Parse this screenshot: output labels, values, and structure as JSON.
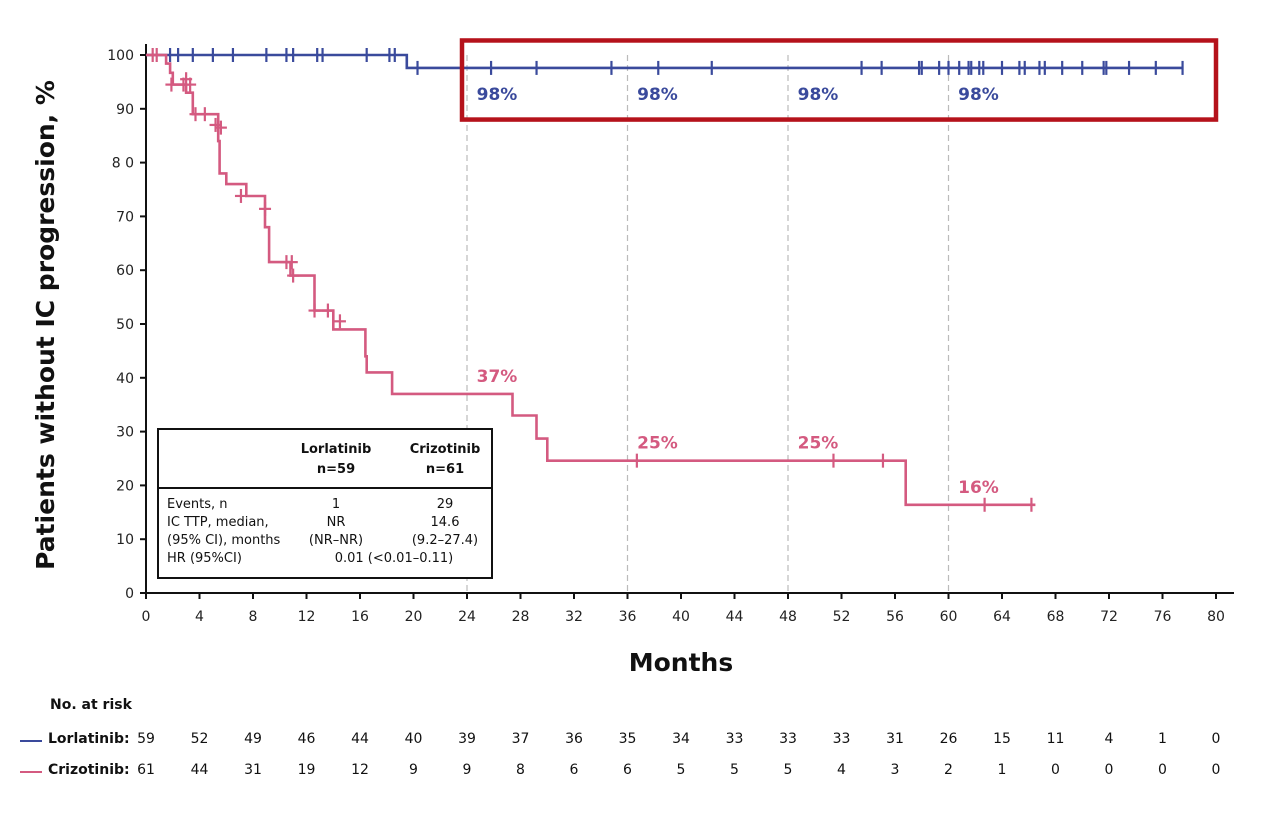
{
  "chart_data": {
    "type": "line",
    "title": "",
    "ylabel": "Patients without IC progression, %",
    "xlabel": "Months",
    "xlim": [
      0,
      80
    ],
    "ylim": [
      0,
      100
    ],
    "x_ticks": [
      "0",
      "4",
      "8",
      "12",
      "16",
      "20",
      "24",
      "28",
      "32",
      "36",
      "40",
      "44",
      "48",
      "52",
      "56",
      "60",
      "64",
      "68",
      "72",
      "76",
      "80"
    ],
    "y_ticks": [
      "0",
      "10",
      "20",
      "30",
      "40",
      "50",
      "60",
      "70",
      "8 0",
      "90",
      "100"
    ],
    "reference_lines_x": [
      24,
      36,
      48,
      60
    ],
    "series": [
      {
        "name": "Lorlatinib",
        "color": "#3a4a9c",
        "steps": [
          [
            0,
            100
          ],
          [
            19.5,
            100
          ],
          [
            19.5,
            97.6
          ],
          [
            77.5,
            97.6
          ]
        ],
        "censors": [
          [
            1.8,
            100
          ],
          [
            2.4,
            100
          ],
          [
            3.5,
            100
          ],
          [
            5,
            100
          ],
          [
            6.5,
            100
          ],
          [
            9,
            100
          ],
          [
            10.5,
            100
          ],
          [
            11,
            100
          ],
          [
            12.8,
            100
          ],
          [
            13.2,
            100
          ],
          [
            16.5,
            100
          ],
          [
            18.2,
            100
          ],
          [
            18.6,
            100
          ],
          [
            20.3,
            97.6
          ],
          [
            25.8,
            97.6
          ],
          [
            29.2,
            97.6
          ],
          [
            34.8,
            97.6
          ],
          [
            38.3,
            97.6
          ],
          [
            42.3,
            97.6
          ],
          [
            53.5,
            97.6
          ],
          [
            55,
            97.6
          ],
          [
            57.8,
            97.6
          ],
          [
            58,
            97.6
          ],
          [
            59.3,
            97.6
          ],
          [
            60,
            97.6
          ],
          [
            60.8,
            97.6
          ],
          [
            61.5,
            97.6
          ],
          [
            61.7,
            97.6
          ],
          [
            62.3,
            97.6
          ],
          [
            62.6,
            97.6
          ],
          [
            64,
            97.6
          ],
          [
            65.3,
            97.6
          ],
          [
            65.7,
            97.6
          ],
          [
            66.8,
            97.6
          ],
          [
            67.2,
            97.6
          ],
          [
            68.5,
            97.6
          ],
          [
            70,
            97.6
          ],
          [
            71.6,
            97.6
          ],
          [
            71.8,
            97.6
          ],
          [
            73.5,
            97.6
          ],
          [
            75.5,
            97.6
          ],
          [
            77.5,
            97.6
          ]
        ],
        "annotations": [
          {
            "x": 24,
            "y": 97.6,
            "label": "98%"
          },
          {
            "x": 36,
            "y": 97.6,
            "label": "98%"
          },
          {
            "x": 48,
            "y": 97.6,
            "label": "98%"
          },
          {
            "x": 60,
            "y": 97.6,
            "label": "98%"
          }
        ]
      },
      {
        "name": "Crizotinib",
        "color": "#d45a80",
        "steps": [
          [
            0,
            100
          ],
          [
            1.5,
            100
          ],
          [
            1.5,
            98.4
          ],
          [
            1.8,
            98.4
          ],
          [
            1.8,
            96.7
          ],
          [
            2,
            96.7
          ],
          [
            2,
            94.5
          ],
          [
            3,
            94.5
          ],
          [
            3,
            93
          ],
          [
            3.5,
            93
          ],
          [
            3.5,
            89
          ],
          [
            5.4,
            89
          ],
          [
            5.4,
            84
          ],
          [
            5.5,
            84
          ],
          [
            5.5,
            78
          ],
          [
            6,
            78
          ],
          [
            6,
            76
          ],
          [
            7.5,
            76
          ],
          [
            7.5,
            73.8
          ],
          [
            8.9,
            73.8
          ],
          [
            8.9,
            68
          ],
          [
            9.2,
            68
          ],
          [
            9.2,
            61.5
          ],
          [
            10.8,
            61.5
          ],
          [
            10.8,
            59
          ],
          [
            12.6,
            59
          ],
          [
            12.6,
            52.5
          ],
          [
            14,
            52.5
          ],
          [
            14,
            49
          ],
          [
            16.4,
            49
          ],
          [
            16.4,
            44
          ],
          [
            16.5,
            44
          ],
          [
            16.5,
            41
          ],
          [
            18.4,
            41
          ],
          [
            18.4,
            37
          ],
          [
            27.4,
            37
          ],
          [
            27.4,
            33
          ],
          [
            29.2,
            33
          ],
          [
            29.2,
            28.7
          ],
          [
            30,
            28.7
          ],
          [
            30,
            24.6
          ],
          [
            56.8,
            24.6
          ],
          [
            56.8,
            16.4
          ],
          [
            66.5,
            16.4
          ]
        ],
        "censors": [
          [
            0.5,
            100
          ],
          [
            0.8,
            100
          ],
          [
            1.9,
            94.5
          ],
          [
            2.8,
            94.5
          ],
          [
            3,
            95.5
          ],
          [
            3.3,
            94.5
          ],
          [
            3.7,
            89
          ],
          [
            4.4,
            89
          ],
          [
            5.2,
            87
          ],
          [
            5.6,
            86.5
          ],
          [
            7.1,
            73.8
          ],
          [
            8.9,
            71.4
          ],
          [
            10.5,
            61.5
          ],
          [
            10.9,
            61.5
          ],
          [
            11,
            59
          ],
          [
            12.6,
            52.5
          ],
          [
            13.6,
            52.5
          ],
          [
            14.5,
            50.5
          ],
          [
            36.7,
            24.6
          ],
          [
            51.4,
            24.6
          ],
          [
            55.1,
            24.6
          ],
          [
            62.7,
            16.4
          ],
          [
            66.2,
            16.4
          ]
        ],
        "annotations": [
          {
            "x": 24,
            "y": 37,
            "label": "37%"
          },
          {
            "x": 36,
            "y": 24.6,
            "label": "25%"
          },
          {
            "x": 48,
            "y": 24.6,
            "label": "25%"
          },
          {
            "x": 60,
            "y": 16.4,
            "label": "16%"
          }
        ]
      }
    ],
    "highlight_box": {
      "x_from": 24,
      "x_to": 80,
      "y_from": 88,
      "y_to": 102.7,
      "color": "#b5121b"
    },
    "stats_table": {
      "col1_name": "Lorlatinib",
      "col1_n": "n=59",
      "col2_name": "Crizotinib",
      "col2_n": "n=61",
      "rows": {
        "events_label": "Events, n",
        "events_lor": "1",
        "events_criz": "29",
        "ttp_label_1": "IC TTP, median,",
        "ttp_label_2": "(95% CI), months",
        "ttp_lor": "NR",
        "ttp_criz": "14.6",
        "ttp_ci_lor": "(NR–NR)",
        "ttp_ci_criz": "(9.2–27.4)",
        "hr_label": "HR (95%CI)",
        "hr_value": "0.01 (<0.01–0.11)"
      }
    },
    "number_at_risk": {
      "title": "No. at risk",
      "times": [
        0,
        4,
        8,
        12,
        16,
        20,
        24,
        28,
        32,
        36,
        40,
        44,
        48,
        52,
        56,
        60,
        64,
        68,
        72,
        76,
        80
      ],
      "lorlatinib_label": "Lorlatinib:",
      "crizotinib_label": "Crizotinib:",
      "lorlatinib": [
        "59",
        "52",
        "49",
        "46",
        "44",
        "40",
        "39",
        "37",
        "36",
        "35",
        "34",
        "33",
        "33",
        "33",
        "31",
        "26",
        "15",
        "11",
        "4",
        "1",
        "0"
      ],
      "crizotinib": [
        "61",
        "44",
        "31",
        "19",
        "12",
        "9",
        "9",
        "8",
        "6",
        "6",
        "5",
        "5",
        "5",
        "4",
        "3",
        "2",
        "1",
        "0",
        "0",
        "0",
        "0"
      ]
    }
  }
}
